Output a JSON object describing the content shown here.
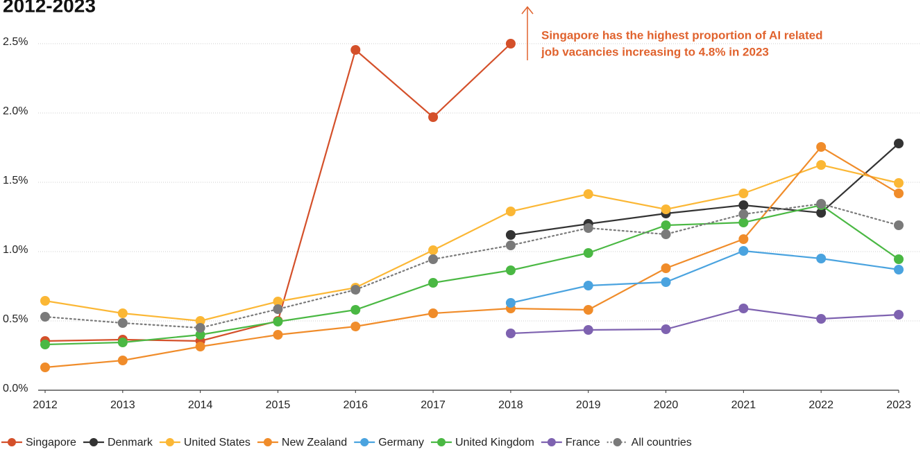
{
  "chart_data": {
    "type": "line",
    "title": "2012-2023",
    "annotation": [
      "Singapore has the highest proportion of AI related",
      "job vacancies increasing to 4.8% in 2023"
    ],
    "annotation_color": "#e0622d",
    "x": [
      2012,
      2013,
      2014,
      2015,
      2016,
      2017,
      2018,
      2019,
      2020,
      2021,
      2022,
      2023
    ],
    "xlim": [
      2012,
      2023
    ],
    "xticks": [
      2012,
      2013,
      2014,
      2015,
      2016,
      2017,
      2018,
      2019,
      2020,
      2021,
      2022,
      2023
    ],
    "ylim": [
      0,
      2.5
    ],
    "yticks": [
      {
        "value": 0,
        "label": "0.0%"
      },
      {
        "value": 0.5,
        "label": "0.5%"
      },
      {
        "value": 1,
        "label": "1.0%"
      },
      {
        "value": 1.5,
        "label": "1.5%"
      },
      {
        "value": 2,
        "label": "2.0%"
      },
      {
        "value": 2.5,
        "label": "2.5%"
      }
    ],
    "grid": true,
    "legend": "bottom-left",
    "series": [
      {
        "name": "Singapore",
        "color": "#d4502a",
        "values": [
          0.355,
          0.365,
          0.355,
          0.5,
          2.455,
          1.97,
          2.5,
          null,
          null,
          null,
          null,
          null
        ]
      },
      {
        "name": "Denmark",
        "color": "#333333",
        "values": [
          null,
          null,
          null,
          null,
          null,
          null,
          1.12,
          1.2,
          1.275,
          1.335,
          1.28,
          1.78
        ]
      },
      {
        "name": "United States",
        "color": "#fbb735",
        "values": [
          0.645,
          0.555,
          0.5,
          0.64,
          0.74,
          1.01,
          1.29,
          1.415,
          1.305,
          1.42,
          1.625,
          1.495
        ]
      },
      {
        "name": "New Zealand",
        "color": "#f08c2a",
        "values": [
          0.165,
          0.215,
          0.315,
          0.4,
          0.46,
          0.555,
          0.59,
          0.58,
          0.88,
          1.09,
          1.755,
          1.42
        ]
      },
      {
        "name": "Germany",
        "color": "#4aa3df",
        "values": [
          null,
          null,
          null,
          null,
          null,
          null,
          0.63,
          0.755,
          0.78,
          1.005,
          0.95,
          0.87
        ]
      },
      {
        "name": "United Kingdom",
        "color": "#4ab843",
        "values": [
          0.33,
          0.345,
          0.4,
          0.495,
          0.58,
          0.775,
          0.865,
          0.99,
          1.19,
          1.21,
          1.335,
          0.945
        ]
      },
      {
        "name": "France",
        "color": "#7e62b0",
        "values": [
          null,
          null,
          null,
          null,
          null,
          null,
          0.41,
          0.435,
          0.44,
          0.59,
          0.515,
          0.545
        ]
      },
      {
        "name": "All countries",
        "color": "#7a7a7a",
        "dash": "dotted",
        "values": [
          0.53,
          0.485,
          0.45,
          0.585,
          0.725,
          0.945,
          1.045,
          1.17,
          1.125,
          1.27,
          1.345,
          1.19
        ]
      }
    ]
  }
}
